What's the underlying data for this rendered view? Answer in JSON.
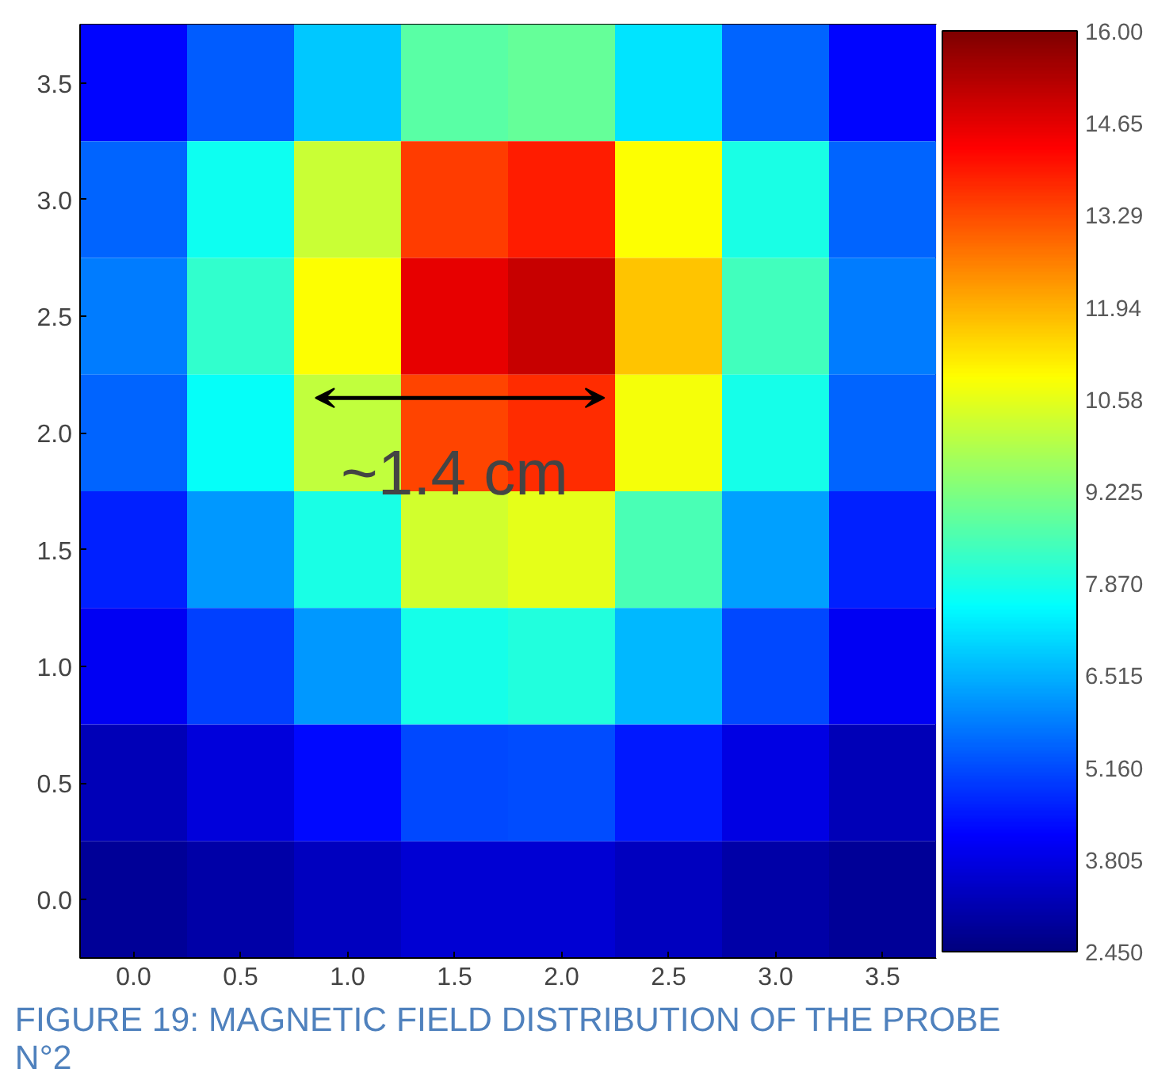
{
  "chart_data": {
    "type": "heatmap",
    "categories": [
      "0.0",
      "0.5",
      "1.0",
      "1.5",
      "2.0",
      "2.5",
      "3.0",
      "3.5"
    ],
    "y_categories": [
      "3.5",
      "3.0",
      "2.5",
      "2.0",
      "1.5",
      "1.0",
      "0.5",
      "0.0"
    ],
    "clim": [
      2.45,
      16
    ],
    "cticks": [
      {
        "value": 2.45,
        "label": "2.450"
      },
      {
        "value": 3.805,
        "label": "3.805"
      },
      {
        "value": 5.16,
        "label": "5.160"
      },
      {
        "value": 6.515,
        "label": "6.515"
      },
      {
        "value": 7.87,
        "label": "7.870"
      },
      {
        "value": 9.225,
        "label": "9.225"
      },
      {
        "value": 10.58,
        "label": "10.58"
      },
      {
        "value": 11.935,
        "label": "11.94"
      },
      {
        "value": 13.29,
        "label": "13.29"
      },
      {
        "value": 14.645,
        "label": "14.65"
      },
      {
        "value": 16,
        "label": "16.00"
      }
    ],
    "cells": [
      [
        4.2,
        5.4,
        6.8,
        8.7,
        8.9,
        7.2,
        5.5,
        4.2
      ],
      [
        5.5,
        7.7,
        10.2,
        13.5,
        13.9,
        10.9,
        7.9,
        5.5
      ],
      [
        5.8,
        8.2,
        10.9,
        14.6,
        15.0,
        11.7,
        8.4,
        5.8
      ],
      [
        5.5,
        7.6,
        10.1,
        13.4,
        13.7,
        10.8,
        7.8,
        5.5
      ],
      [
        4.6,
        6.2,
        7.9,
        10.3,
        10.6,
        8.5,
        6.3,
        4.6
      ],
      [
        4.0,
        5.0,
        6.2,
        7.8,
        8.0,
        6.6,
        5.1,
        4.0
      ],
      [
        3.2,
        3.7,
        4.3,
        5.1,
        5.2,
        4.5,
        3.8,
        3.2
      ],
      [
        2.8,
        3.0,
        3.3,
        3.6,
        3.6,
        3.3,
        3.0,
        2.8
      ]
    ],
    "annotations": [
      "~1.4 cm",
      "FIGURE 19: MAGNETIC FIELD DISTRIBUTION OF THE PROBE N°2"
    ]
  }
}
